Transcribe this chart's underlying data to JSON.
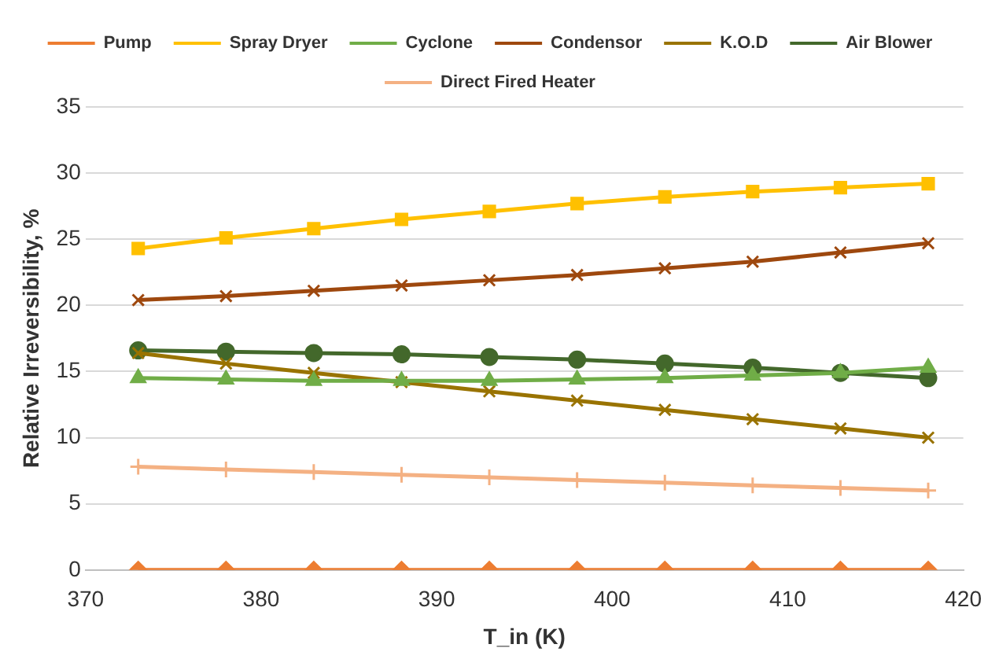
{
  "chart_data": {
    "type": "line",
    "xlabel": "T_in (K)",
    "ylabel": "Relative Irreversibility, %",
    "x": [
      373,
      378,
      383,
      388,
      393,
      398,
      403,
      408,
      413,
      418
    ],
    "xlim": [
      370,
      420
    ],
    "xticks": [
      370,
      380,
      390,
      400,
      410,
      420
    ],
    "ylim": [
      0,
      35
    ],
    "yticks": [
      0,
      5,
      10,
      15,
      20,
      25,
      30,
      35
    ],
    "grid": "y",
    "legend": "top",
    "line_style": "solid",
    "series": [
      {
        "name": "Pump",
        "color": "#ed7d31",
        "marker": "diamond",
        "values": [
          0,
          0,
          0,
          0,
          0,
          0,
          0,
          0,
          0,
          0
        ]
      },
      {
        "name": "Spray Dryer",
        "color": "#ffc000",
        "marker": "square",
        "values": [
          24.3,
          25.1,
          25.8,
          26.5,
          27.1,
          27.7,
          28.2,
          28.6,
          28.9,
          29.2
        ]
      },
      {
        "name": "Cyclone",
        "color": "#70ad47",
        "marker": "triangle",
        "values": [
          14.5,
          14.4,
          14.3,
          14.3,
          14.3,
          14.4,
          14.5,
          14.7,
          14.9,
          15.3
        ]
      },
      {
        "name": "Condensor",
        "color": "#9e480e",
        "marker": "cross",
        "values": [
          20.4,
          20.7,
          21.1,
          21.5,
          21.9,
          22.3,
          22.8,
          23.3,
          24.0,
          24.7
        ]
      },
      {
        "name": "K.O.D",
        "color": "#997300",
        "marker": "cross",
        "values": [
          16.4,
          15.6,
          14.9,
          14.2,
          13.5,
          12.8,
          12.1,
          11.4,
          10.7,
          10.0
        ]
      },
      {
        "name": "Air Blower",
        "color": "#43682b",
        "marker": "circle",
        "values": [
          16.6,
          16.5,
          16.4,
          16.3,
          16.1,
          15.9,
          15.6,
          15.3,
          14.9,
          14.5
        ]
      },
      {
        "name": "Direct Fired Heater",
        "color": "#f4b183",
        "marker": "plus",
        "values": [
          7.8,
          7.6,
          7.4,
          7.2,
          7.0,
          6.8,
          6.6,
          6.4,
          6.2,
          6.0
        ]
      }
    ]
  }
}
